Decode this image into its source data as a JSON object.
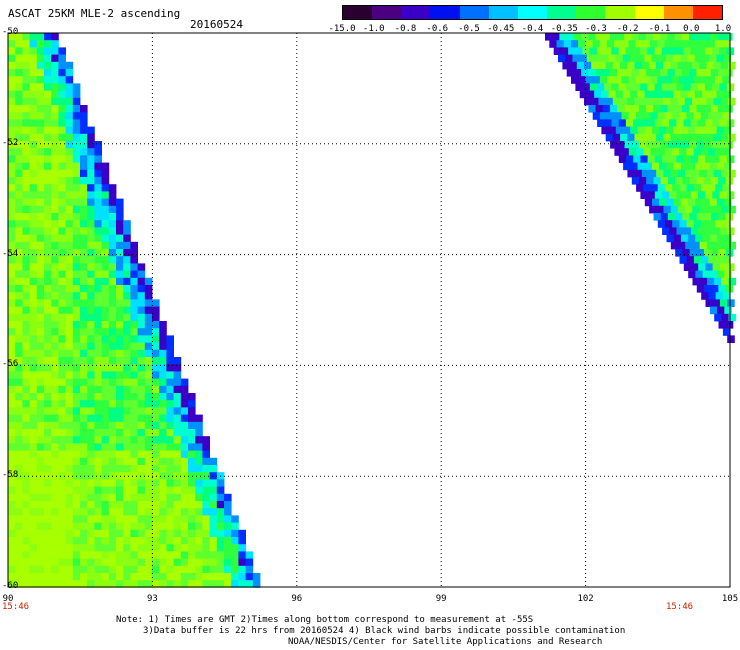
{
  "header": {
    "title": "ASCAT 25KM MLE-2 ascending",
    "date": "20160524"
  },
  "colorbar": {
    "labels": [
      "-15.0",
      "-1.0",
      "-0.8",
      "-0.6",
      "-0.5",
      "-0.45",
      "-0.4",
      "-0.35",
      "-0.3",
      "-0.2",
      "-0.1",
      "0.0",
      "1.0"
    ],
    "colors": [
      "#2a0030",
      "#4a0080",
      "#3a00c8",
      "#0010f0",
      "#0070ff",
      "#00c0ff",
      "#00ffff",
      "#00ff90",
      "#30ff30",
      "#a0ff00",
      "#ffff00",
      "#ff9000",
      "#ff2000"
    ]
  },
  "axes": {
    "lon_ticks": [
      "90",
      "93",
      "96",
      "99",
      "102",
      "105"
    ],
    "lat_ticks": [
      "-50",
      "-52",
      "-54",
      "-56",
      "-58",
      "-60"
    ]
  },
  "times": {
    "left": "15:46",
    "right": "15:46"
  },
  "notes": {
    "line1": "Note: 1) Times are GMT 2)Times along bottom correspond to measurement at -55S",
    "line2": "3)Data buffer is 22 hrs from 20160524 4) Black wind barbs indicate possible contamination",
    "line3": "NOAA/NESDIS/Center for Satellite Applications and Research"
  }
}
